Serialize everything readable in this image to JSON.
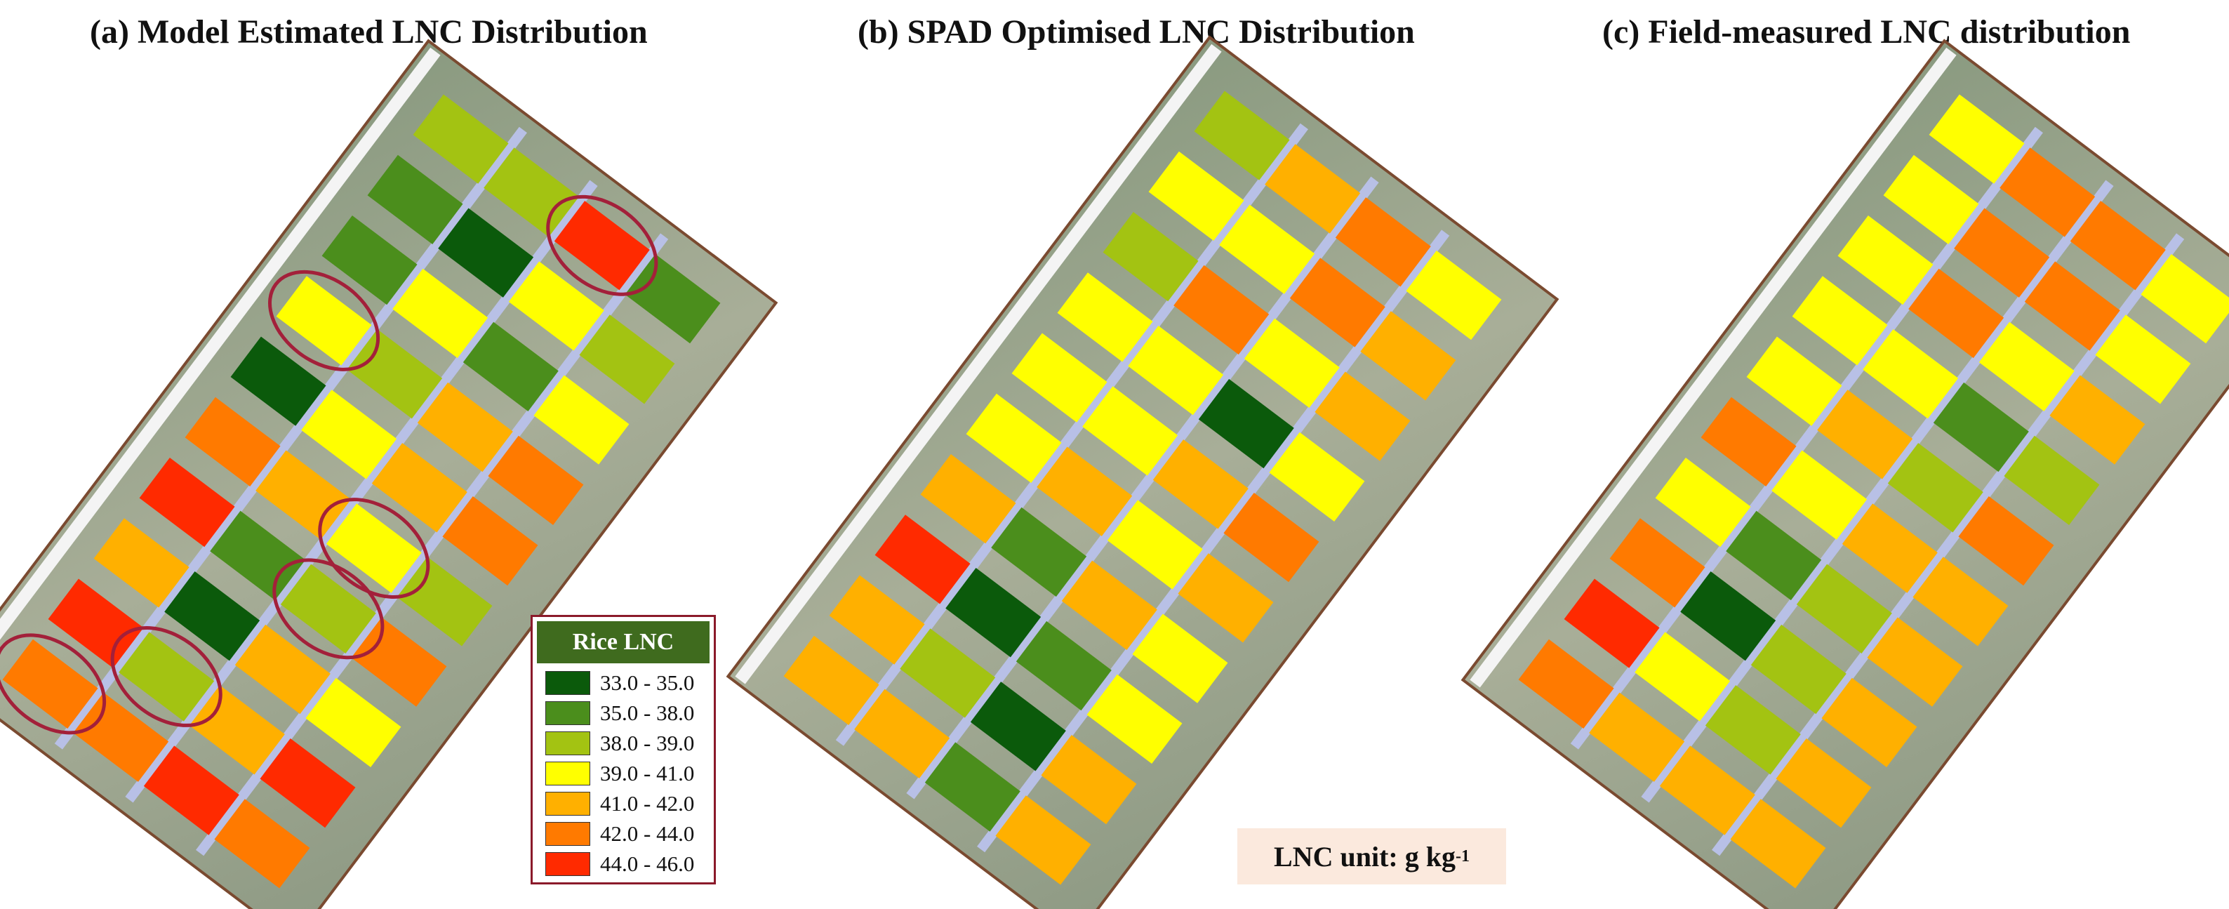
{
  "titles": {
    "a": "(a) Model Estimated LNC Distribution",
    "b": "(b) SPAD Optimised LNC Distribution",
    "c": "(c) Field-measured LNC distribution"
  },
  "legend": {
    "title": "Rice LNC",
    "classes": [
      {
        "label": "33.0 - 35.0",
        "color": "#0b5a0b"
      },
      {
        "label": "35.0 - 38.0",
        "color": "#4b8e1c"
      },
      {
        "label": "38.0 - 39.0",
        "color": "#a3c312"
      },
      {
        "label": "39.0 - 41.0",
        "color": "#ffff00"
      },
      {
        "label": "41.0 - 42.0",
        "color": "#ffb000"
      },
      {
        "label": "42.0 - 44.0",
        "color": "#ff7a00"
      },
      {
        "label": "44.0 - 46.0",
        "color": "#ff2a00"
      }
    ]
  },
  "unit": {
    "text": "LNC unit: g kg",
    "superscript": "-1"
  },
  "maps": {
    "a": {
      "grid": [
        [
          2,
          2,
          6,
          1
        ],
        [
          1,
          0,
          3,
          2
        ],
        [
          1,
          3,
          1,
          3
        ],
        [
          3,
          2,
          4,
          5
        ],
        [
          0,
          3,
          4,
          5
        ],
        [
          5,
          4,
          3,
          2
        ],
        [
          6,
          1,
          2,
          5
        ],
        [
          4,
          0,
          4,
          3
        ],
        [
          6,
          2,
          4,
          6
        ],
        [
          5,
          5,
          6,
          5
        ]
      ],
      "highlighted_plots": [
        [
          0,
          2
        ],
        [
          3,
          0
        ],
        [
          5,
          2
        ],
        [
          6,
          2
        ],
        [
          8,
          1
        ],
        [
          9,
          0
        ]
      ]
    },
    "b": {
      "grid": [
        [
          2,
          4,
          5,
          3
        ],
        [
          3,
          3,
          5,
          4
        ],
        [
          2,
          5,
          3,
          4
        ],
        [
          3,
          3,
          0,
          3
        ],
        [
          3,
          3,
          4,
          5
        ],
        [
          3,
          4,
          3,
          4
        ],
        [
          4,
          1,
          4,
          3
        ],
        [
          6,
          0,
          1,
          3
        ],
        [
          4,
          2,
          0,
          4
        ],
        [
          4,
          4,
          1,
          4
        ]
      ]
    },
    "c": {
      "grid": [
        [
          3,
          5,
          5,
          3
        ],
        [
          3,
          5,
          5,
          3
        ],
        [
          3,
          5,
          3,
          4
        ],
        [
          3,
          3,
          1,
          2
        ],
        [
          3,
          4,
          2,
          5
        ],
        [
          5,
          3,
          4,
          4
        ],
        [
          3,
          1,
          2,
          4
        ],
        [
          5,
          0,
          2,
          4
        ],
        [
          6,
          3,
          2,
          4
        ],
        [
          5,
          4,
          4,
          4
        ]
      ]
    }
  }
}
